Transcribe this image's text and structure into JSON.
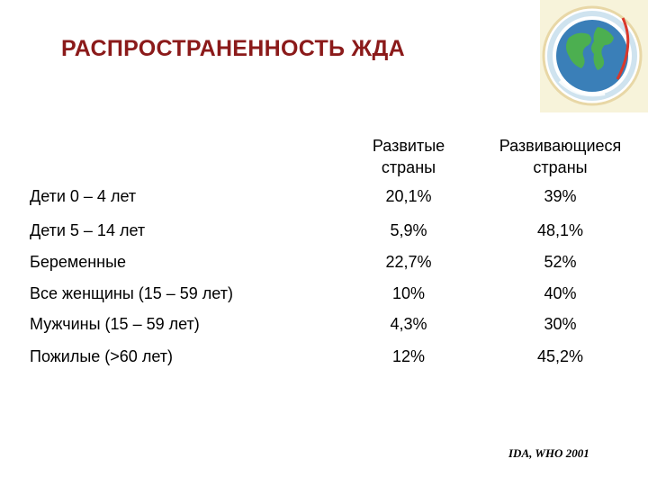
{
  "title": "РАСПРОСТРАНЕННОСТЬ ЖДА",
  "table": {
    "headers": [
      [
        "Развитые",
        "страны"
      ],
      [
        "Развивающиеся",
        "страны"
      ]
    ],
    "rows": [
      {
        "label": "Дети 0 – 4 лет",
        "developed": "20,1%",
        "developing": "39%"
      },
      {
        "label": "Дети 5 – 14 лет",
        "developed": "5,9%",
        "developing": "48,1%"
      },
      {
        "label": "Беременные",
        "developed": "22,7%",
        "developing": "52%"
      },
      {
        "label": "Все женщины (15 – 59 лет)",
        "developed": "10%",
        "developing": "40%"
      },
      {
        "label": "Мужчины  (15 – 59 лет)",
        "developed": "4,3%",
        "developing": "30%"
      },
      {
        "label": "Пожилые (>60 лет)",
        "developed": "12%",
        "developing": "45,2%"
      }
    ]
  },
  "source": "IDA, WHO 2001",
  "colors": {
    "title": "#8b1a1a",
    "globe_ocean": "#3a7fb8",
    "globe_land": "#4caf50"
  },
  "icons": [
    "globe-logo-icon"
  ]
}
